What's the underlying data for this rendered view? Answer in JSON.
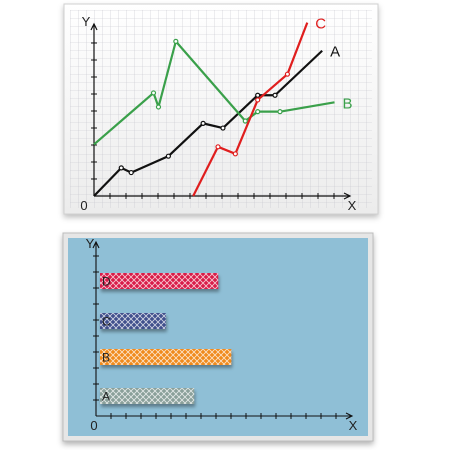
{
  "colors": {
    "paper": "#f7f7f7",
    "grid": "#b8b8c2",
    "axis": "#111111",
    "line_A": "#111111",
    "line_B": "#3aa04a",
    "line_C": "#e01e1e",
    "board": "#8fbfd6",
    "bar_D": "#d81e4a",
    "bar_C": "#3f4f8c",
    "bar_B": "#f08a1e",
    "bar_A": "#8aa09a"
  },
  "icons": {
    "top_panel": "graph-paper",
    "bottom_panel": "blue-board"
  },
  "chart_data": [
    {
      "type": "line",
      "title": "",
      "xlabel": "X",
      "ylabel": "Y",
      "origin_label": "0",
      "xlim": [
        0,
        10
      ],
      "ylim": [
        0,
        7
      ],
      "grid": true,
      "legend": "inline-labels",
      "series": [
        {
          "name": "A",
          "color": "#111111",
          "points": [
            [
              0,
              0
            ],
            [
              1.1,
              1.2
            ],
            [
              1.5,
              1.0
            ],
            [
              3.0,
              1.7
            ],
            [
              4.4,
              3.1
            ],
            [
              5.2,
              2.9
            ],
            [
              6.6,
              4.3
            ],
            [
              7.3,
              4.3
            ],
            [
              9.2,
              6.2
            ]
          ]
        },
        {
          "name": "B",
          "color": "#3aa04a",
          "points": [
            [
              0,
              2.2
            ],
            [
              2.4,
              4.4
            ],
            [
              2.6,
              3.8
            ],
            [
              3.3,
              6.6
            ],
            [
              6.1,
              3.2
            ],
            [
              6.6,
              3.6
            ],
            [
              7.5,
              3.6
            ],
            [
              9.7,
              4.0
            ]
          ]
        },
        {
          "name": "C",
          "color": "#e01e1e",
          "points": [
            [
              4.0,
              0
            ],
            [
              5.0,
              2.1
            ],
            [
              5.7,
              1.8
            ],
            [
              6.6,
              4.1
            ],
            [
              7.8,
              5.2
            ],
            [
              8.6,
              7.4
            ]
          ]
        }
      ]
    },
    {
      "type": "bar",
      "orientation": "horizontal",
      "title": "",
      "xlabel": "X",
      "ylabel": "Y",
      "origin_label": "0",
      "xlim": [
        0,
        10
      ],
      "grid": false,
      "categories": [
        "D",
        "C",
        "B",
        "A"
      ],
      "values": [
        5.6,
        3.2,
        6.2,
        4.5
      ]
    }
  ]
}
